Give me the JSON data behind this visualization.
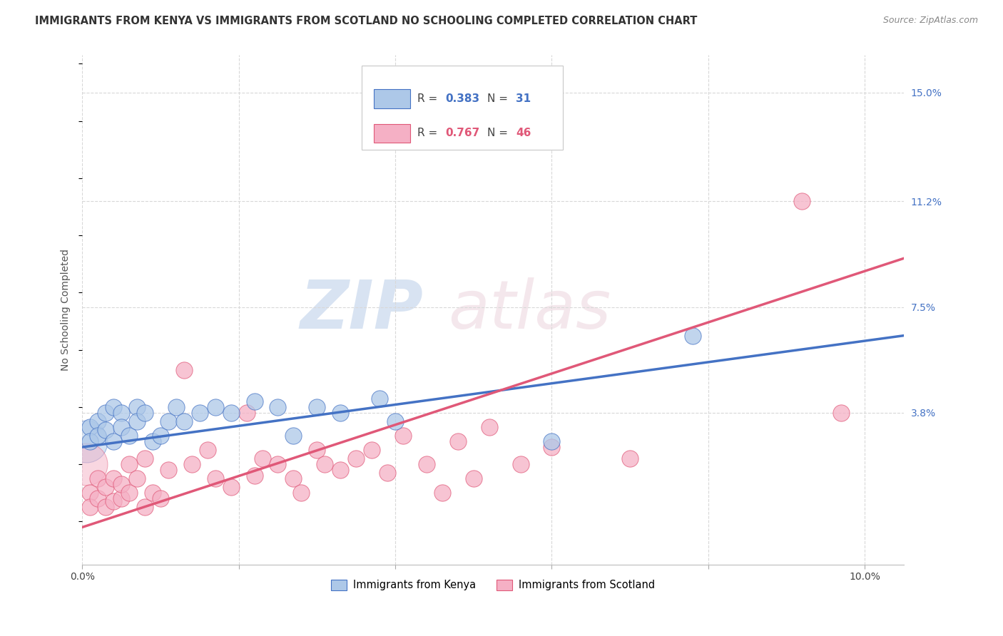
{
  "title": "IMMIGRANTS FROM KENYA VS IMMIGRANTS FROM SCOTLAND NO SCHOOLING COMPLETED CORRELATION CHART",
  "source": "Source: ZipAtlas.com",
  "ylabel": "No Schooling Completed",
  "xlim": [
    0.0,
    0.105
  ],
  "ylim": [
    -0.015,
    0.163
  ],
  "ytick_positions": [
    0.0,
    0.038,
    0.075,
    0.112,
    0.15
  ],
  "ytick_labels": [
    "",
    "3.8%",
    "7.5%",
    "11.2%",
    "15.0%"
  ],
  "xticks": [
    0.0,
    0.02,
    0.04,
    0.06,
    0.08,
    0.1
  ],
  "xticklabels": [
    "0.0%",
    "",
    "",
    "",
    "",
    "10.0%"
  ],
  "kenya_R": "0.383",
  "kenya_N": "31",
  "scotland_R": "0.767",
  "scotland_N": "46",
  "kenya_color": "#adc8e8",
  "kenya_line_color": "#4472c4",
  "scotland_color": "#f5b0c5",
  "scotland_line_color": "#e05878",
  "kenya_x": [
    0.001,
    0.001,
    0.002,
    0.002,
    0.003,
    0.003,
    0.004,
    0.004,
    0.005,
    0.005,
    0.006,
    0.007,
    0.007,
    0.008,
    0.009,
    0.01,
    0.011,
    0.012,
    0.013,
    0.015,
    0.017,
    0.019,
    0.022,
    0.025,
    0.027,
    0.03,
    0.033,
    0.038,
    0.04,
    0.06,
    0.078
  ],
  "kenya_y": [
    0.033,
    0.028,
    0.035,
    0.03,
    0.038,
    0.032,
    0.04,
    0.028,
    0.038,
    0.033,
    0.03,
    0.04,
    0.035,
    0.038,
    0.028,
    0.03,
    0.035,
    0.04,
    0.035,
    0.038,
    0.04,
    0.038,
    0.042,
    0.04,
    0.03,
    0.04,
    0.038,
    0.043,
    0.035,
    0.028,
    0.065
  ],
  "scotland_x": [
    0.001,
    0.001,
    0.002,
    0.002,
    0.003,
    0.003,
    0.004,
    0.004,
    0.005,
    0.005,
    0.006,
    0.006,
    0.007,
    0.008,
    0.008,
    0.009,
    0.01,
    0.011,
    0.013,
    0.014,
    0.016,
    0.017,
    0.019,
    0.021,
    0.022,
    0.023,
    0.025,
    0.027,
    0.028,
    0.03,
    0.031,
    0.033,
    0.035,
    0.037,
    0.039,
    0.041,
    0.044,
    0.046,
    0.048,
    0.05,
    0.052,
    0.056,
    0.06,
    0.07,
    0.092,
    0.097
  ],
  "scotland_y": [
    0.01,
    0.005,
    0.008,
    0.015,
    0.005,
    0.012,
    0.007,
    0.015,
    0.008,
    0.013,
    0.01,
    0.02,
    0.015,
    0.022,
    0.005,
    0.01,
    0.008,
    0.018,
    0.053,
    0.02,
    0.025,
    0.015,
    0.012,
    0.038,
    0.016,
    0.022,
    0.02,
    0.015,
    0.01,
    0.025,
    0.02,
    0.018,
    0.022,
    0.025,
    0.017,
    0.03,
    0.02,
    0.01,
    0.028,
    0.015,
    0.033,
    0.02,
    0.026,
    0.022,
    0.112,
    0.038
  ],
  "kenya_trend_x": [
    0.0,
    0.105
  ],
  "kenya_trend_y": [
    0.026,
    0.065
  ],
  "scotland_trend_x": [
    0.0,
    0.105
  ],
  "scotland_trend_y": [
    -0.002,
    0.092
  ],
  "watermark_zip": "ZIP",
  "watermark_atlas": "atlas",
  "grid_color": "#d8d8d8",
  "background_color": "#ffffff",
  "title_fontsize": 10.5,
  "axis_label_fontsize": 10,
  "tick_fontsize": 10
}
